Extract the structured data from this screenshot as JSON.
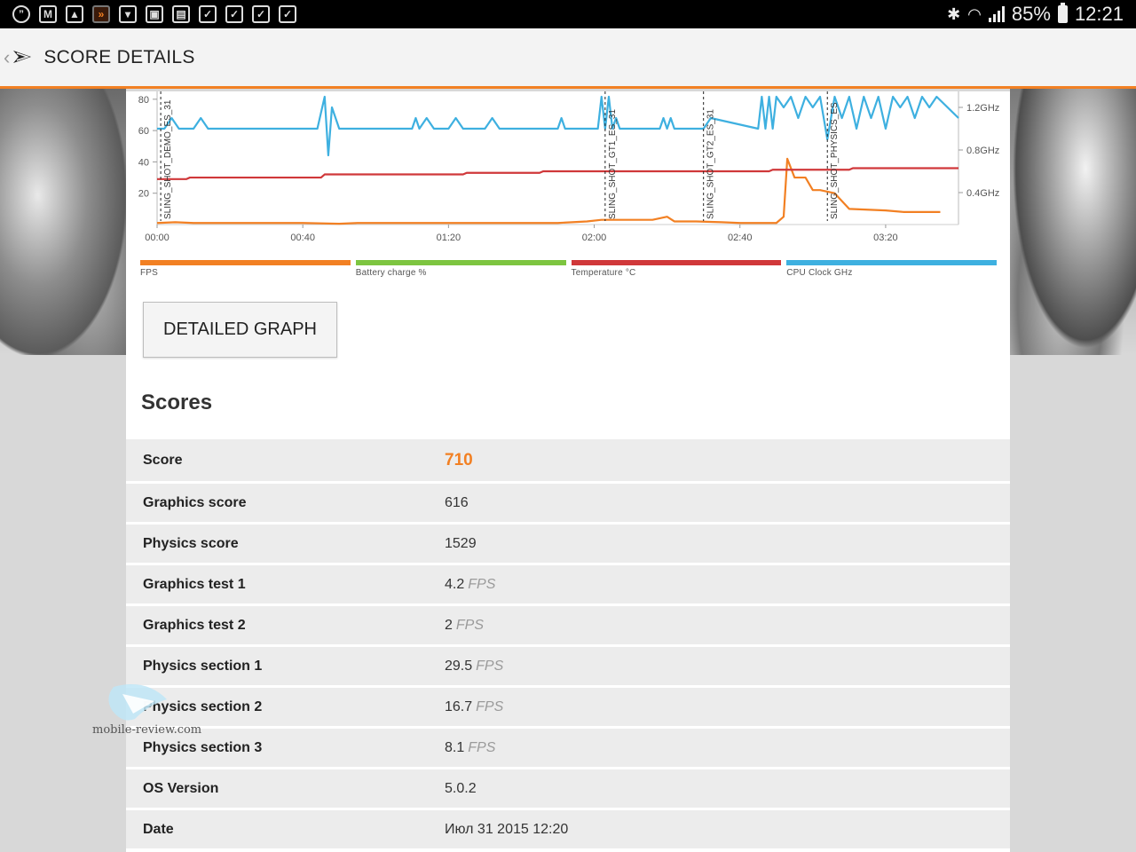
{
  "status_bar": {
    "battery": "85%",
    "time": "12:21"
  },
  "action_bar": {
    "title": "SCORE DETAILS"
  },
  "chart_data": {
    "type": "line",
    "x_ticks": [
      "00:00",
      "00:40",
      "01:20",
      "02:00",
      "02:40",
      "03:20"
    ],
    "y_left_ticks": [
      "80",
      "60",
      "40",
      "20"
    ],
    "y_right_ticks": [
      "1.2GHz",
      "0.8GHz",
      "0.4GHz"
    ],
    "markers": [
      {
        "label": "SLING_SHOT_DEMO_ES_31",
        "x_sec": 1
      },
      {
        "label": "SLING_SHOT_GT1_ES_31",
        "x_sec": 123
      },
      {
        "label": "SLING_SHOT_GT2_ES_31",
        "x_sec": 150
      },
      {
        "label": "SLING_SHOT_PHYSICS_ES",
        "x_sec": 184
      }
    ],
    "series": [
      {
        "name": "FPS",
        "color": "#f28023",
        "x": [
          0,
          5,
          10,
          20,
          30,
          40,
          50,
          55,
          60,
          80,
          100,
          110,
          118,
          122,
          128,
          136,
          140,
          142,
          148,
          155,
          160,
          170,
          172,
          173,
          175,
          178,
          180,
          182,
          184,
          186,
          190,
          200,
          205,
          210,
          215
        ],
        "y": [
          1,
          1.5,
          1,
          1,
          1,
          1,
          0.5,
          1,
          1,
          1,
          1,
          1,
          2,
          3,
          3,
          3,
          5,
          2,
          2,
          1.5,
          1,
          1,
          5,
          42,
          30,
          30,
          22,
          22,
          21,
          20,
          10,
          9,
          8,
          8,
          8
        ]
      },
      {
        "name": "Temperature °C",
        "color": "#d0383a",
        "x": [
          0,
          8,
          9,
          45,
          46,
          84,
          85,
          105,
          106,
          168,
          169,
          190,
          191,
          220
        ],
        "y": [
          29,
          29,
          30,
          30,
          32,
          32,
          33,
          33,
          34,
          34,
          35,
          35,
          36,
          36
        ]
      },
      {
        "name": "CPU Clock GHz",
        "color": "#3eb0e0",
        "x": [
          0,
          2,
          4,
          6,
          8,
          10,
          12,
          14,
          44,
          46,
          47,
          48,
          50,
          70,
          71,
          72,
          74,
          76,
          78,
          80,
          82,
          84,
          86,
          88,
          90,
          92,
          94,
          96,
          110,
          111,
          112,
          121,
          122,
          123,
          124,
          125,
          126,
          127,
          138,
          139,
          140,
          141,
          142,
          150,
          152,
          165,
          166,
          167,
          168,
          169,
          170,
          172,
          174,
          176,
          178,
          180,
          182,
          184,
          186,
          188,
          190,
          192,
          194,
          196,
          198,
          200,
          202,
          204,
          206,
          208,
          210,
          212,
          214,
          220
        ],
        "y": [
          1.0,
          1.0,
          1.1,
          1.0,
          1.0,
          1.0,
          1.1,
          1.0,
          1.0,
          1.3,
          0.75,
          1.2,
          1.0,
          1.0,
          1.1,
          1.0,
          1.1,
          1.0,
          1.0,
          1.0,
          1.1,
          1.0,
          1.0,
          1.0,
          1.0,
          1.1,
          1.0,
          1.0,
          1.0,
          1.1,
          1.0,
          1.0,
          1.3,
          1.0,
          1.3,
          1.0,
          1.1,
          1.0,
          1.0,
          1.1,
          1.0,
          1.1,
          1.0,
          1.0,
          1.1,
          1.0,
          1.3,
          1.0,
          1.3,
          1.0,
          1.3,
          1.2,
          1.3,
          1.1,
          1.3,
          1.2,
          1.3,
          0.9,
          1.3,
          1.1,
          1.3,
          1.0,
          1.3,
          1.1,
          1.3,
          1.0,
          1.3,
          1.2,
          1.3,
          1.1,
          1.3,
          1.2,
          1.3,
          1.1
        ]
      }
    ]
  },
  "legend": [
    {
      "label": "FPS",
      "color": "#f28023"
    },
    {
      "label": "Battery charge %",
      "color": "#7dc540"
    },
    {
      "label": "Temperature °C",
      "color": "#d0383a"
    },
    {
      "label": "CPU Clock GHz",
      "color": "#3eb0e0"
    }
  ],
  "detailed_graph_button": "DETAILED GRAPH",
  "scores_heading": "Scores",
  "scores": [
    {
      "label": "Score",
      "value": "710",
      "unit": ""
    },
    {
      "label": "Graphics score",
      "value": "616",
      "unit": ""
    },
    {
      "label": "Physics score",
      "value": "1529",
      "unit": ""
    },
    {
      "label": "Graphics test 1",
      "value": "4.2",
      "unit": "FPS"
    },
    {
      "label": "Graphics test 2",
      "value": "2",
      "unit": "FPS"
    },
    {
      "label": "Physics section 1",
      "value": "29.5",
      "unit": "FPS"
    },
    {
      "label": "Physics section 2",
      "value": "16.7",
      "unit": "FPS"
    },
    {
      "label": "Physics section 3",
      "value": "8.1",
      "unit": "FPS"
    },
    {
      "label": "OS Version",
      "value": "5.0.2",
      "unit": ""
    },
    {
      "label": "Date",
      "value": "Июл 31 2015 12:20",
      "unit": ""
    }
  ],
  "watermark": "mobile-review.com"
}
